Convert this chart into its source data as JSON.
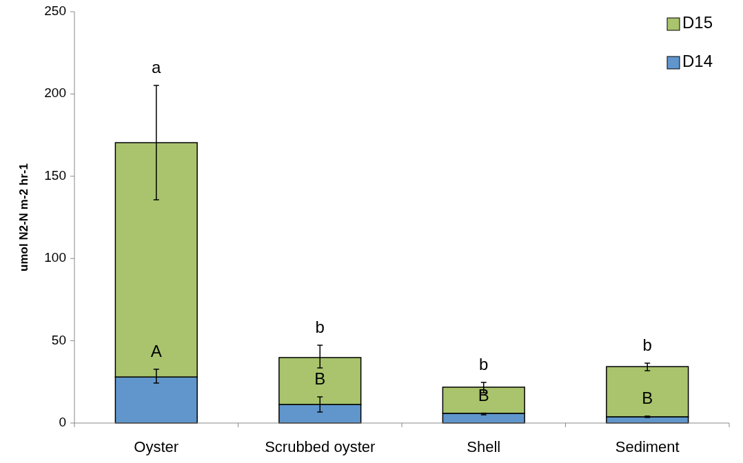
{
  "chart_data": {
    "type": "bar",
    "stacked": true,
    "ylabel": "umol N2-N m-2 hr-1",
    "categories": [
      "Oyster",
      "Scrubbed oyster",
      "Shell",
      "Sediment"
    ],
    "series": [
      {
        "name": "D14",
        "color": "#6096cc",
        "values": [
          28,
          11.3,
          5.9,
          3.8
        ],
        "errors": [
          [
            24.3,
            32.7
          ],
          [
            6.7,
            15.9
          ],
          [
            5.0,
            6.0
          ],
          [
            3.4,
            4.2
          ]
        ]
      },
      {
        "name": "D15",
        "color": "#a9c46c",
        "values": [
          142.4,
          28.5,
          15.9,
          30.5
        ],
        "errors": [
          [
            135.7,
            205.2
          ],
          [
            33.5,
            47.3
          ],
          [
            18.4,
            24.7
          ],
          [
            31.8,
            36.4
          ]
        ]
      }
    ],
    "ylim": [
      0,
      250
    ],
    "yticks": [
      0,
      50,
      100,
      150,
      200,
      250
    ],
    "legend": "top right",
    "annotations": [
      "a",
      "A",
      "b",
      "B",
      "b",
      "B",
      "b",
      "B"
    ]
  }
}
